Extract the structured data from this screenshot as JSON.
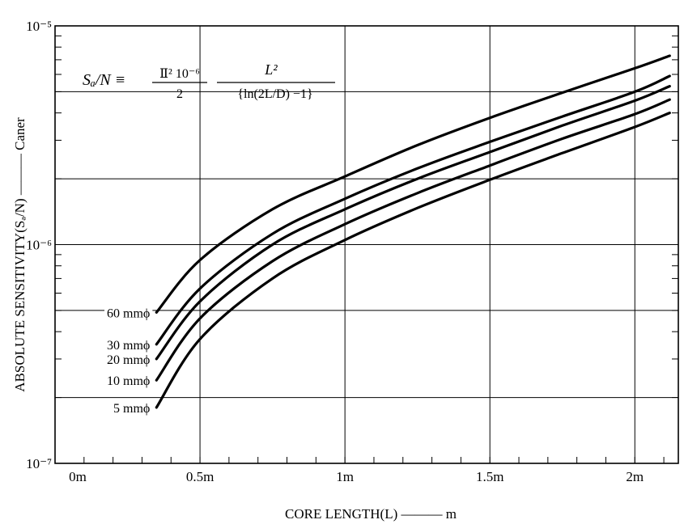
{
  "chart_data": {
    "type": "line",
    "title": "",
    "xlabel": "CORE LENGTH(L) ——— m",
    "ylabel": "ABSOLUTE SENSITIVITY(Sₐ/N) ——— Caner",
    "y_scale": "log",
    "xlim": [
      0,
      2.15
    ],
    "ylim": [
      1e-07,
      1e-05
    ],
    "grid": true,
    "x_ticks": [
      {
        "value": 0,
        "label": "0m"
      },
      {
        "value": 0.5,
        "label": "0.5m"
      },
      {
        "value": 1,
        "label": "1m"
      },
      {
        "value": 1.5,
        "label": "1.5m"
      },
      {
        "value": 2,
        "label": "2m"
      }
    ],
    "y_ticks": [
      {
        "value": 1e-07,
        "label": "10⁻⁷"
      },
      {
        "value": 1e-06,
        "label": "10⁻⁶"
      },
      {
        "value": 1e-05,
        "label": "10⁻⁵"
      }
    ],
    "formula": {
      "lhs": "Sₐ/N ≡",
      "coef_num": "Ⅱ² 10⁻⁶",
      "coef_den": "2",
      "frac_num": "L²",
      "frac_den": "{ln(2L/D) −1}"
    },
    "series": [
      {
        "name": "60 mmϕ",
        "x": [
          0.35,
          0.5,
          0.75,
          1.0,
          1.25,
          1.5,
          1.75,
          2.0,
          2.12
        ],
        "y": [
          4.9e-07,
          8.5e-07,
          1.45e-06,
          2.05e-06,
          2.85e-06,
          3.8e-06,
          4.95e-06,
          6.4e-06,
          7.3e-06
        ]
      },
      {
        "name": "30 mmϕ",
        "x": [
          0.35,
          0.5,
          0.75,
          1.0,
          1.25,
          1.5,
          1.75,
          2.0,
          2.12
        ],
        "y": [
          3.5e-07,
          6.3e-07,
          1.12e-06,
          1.62e-06,
          2.23e-06,
          2.95e-06,
          3.85e-06,
          5e-06,
          5.9e-06
        ]
      },
      {
        "name": "20 mmϕ",
        "x": [
          0.35,
          0.5,
          0.75,
          1.0,
          1.25,
          1.5,
          1.75,
          2.0,
          2.12
        ],
        "y": [
          3e-07,
          5.5e-07,
          1e-06,
          1.45e-06,
          2e-06,
          2.65e-06,
          3.5e-06,
          4.55e-06,
          5.3e-06
        ]
      },
      {
        "name": "10 mmϕ",
        "x": [
          0.35,
          0.5,
          0.75,
          1.0,
          1.25,
          1.5,
          1.75,
          2.0,
          2.12
        ],
        "y": [
          2.4e-07,
          4.6e-07,
          8.4e-07,
          1.24e-06,
          1.72e-06,
          2.3e-06,
          3.05e-06,
          3.95e-06,
          4.6e-06
        ]
      },
      {
        "name": "5 mmϕ",
        "x": [
          0.35,
          0.5,
          0.75,
          1.0,
          1.25,
          1.5,
          1.75,
          2.0,
          2.12
        ],
        "y": [
          1.8e-07,
          3.7e-07,
          7e-07,
          1.05e-06,
          1.47e-06,
          1.98e-06,
          2.62e-06,
          3.45e-06,
          4e-06
        ]
      }
    ]
  }
}
